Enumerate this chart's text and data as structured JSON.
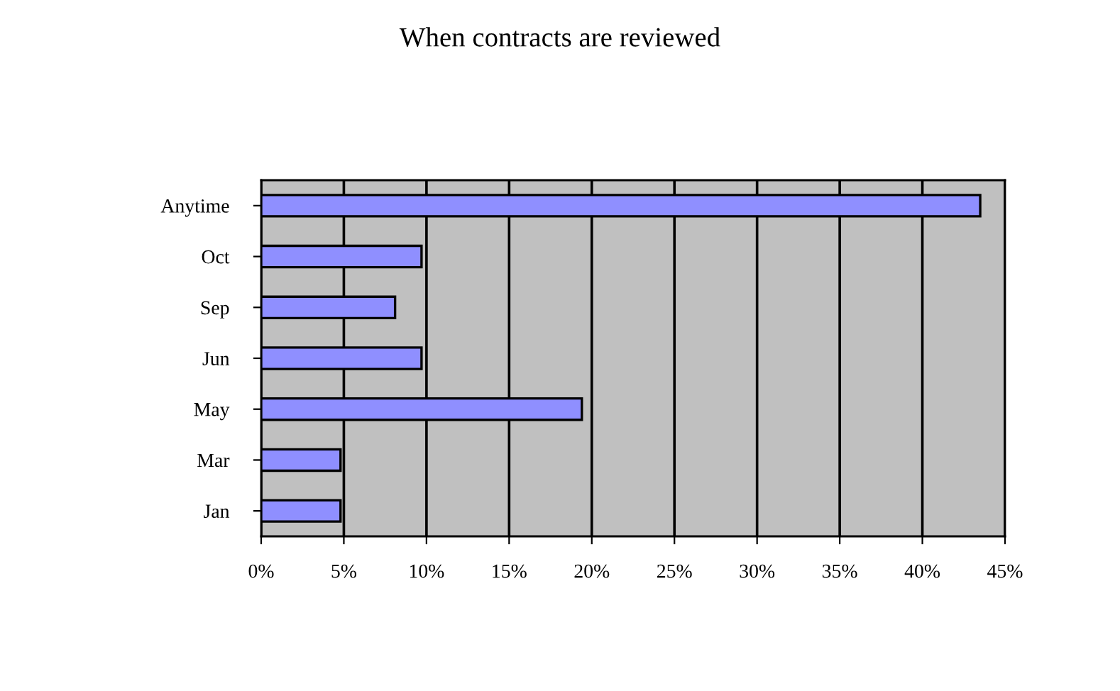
{
  "chart_data": {
    "type": "bar",
    "orientation": "horizontal",
    "title": "When contracts are reviewed",
    "categories": [
      "Anytime",
      "Oct",
      "Sep",
      "Jun",
      "May",
      "Mar",
      "Jan"
    ],
    "values": [
      43.5,
      9.7,
      8.1,
      9.7,
      19.4,
      4.8,
      4.8
    ],
    "color": "#8f8fff",
    "xlim": [
      0,
      45
    ],
    "xticks": [
      {
        "value": 0,
        "label": "0%"
      },
      {
        "value": 5,
        "label": "5%"
      },
      {
        "value": 10,
        "label": "10%"
      },
      {
        "value": 15,
        "label": "15%"
      },
      {
        "value": 20,
        "label": "20%"
      },
      {
        "value": 25,
        "label": "25%"
      },
      {
        "value": 30,
        "label": "30%"
      },
      {
        "value": 35,
        "label": "35%"
      },
      {
        "value": 40,
        "label": "40%"
      },
      {
        "value": 45,
        "label": "45%"
      }
    ],
    "grid": "x",
    "legend": false
  }
}
